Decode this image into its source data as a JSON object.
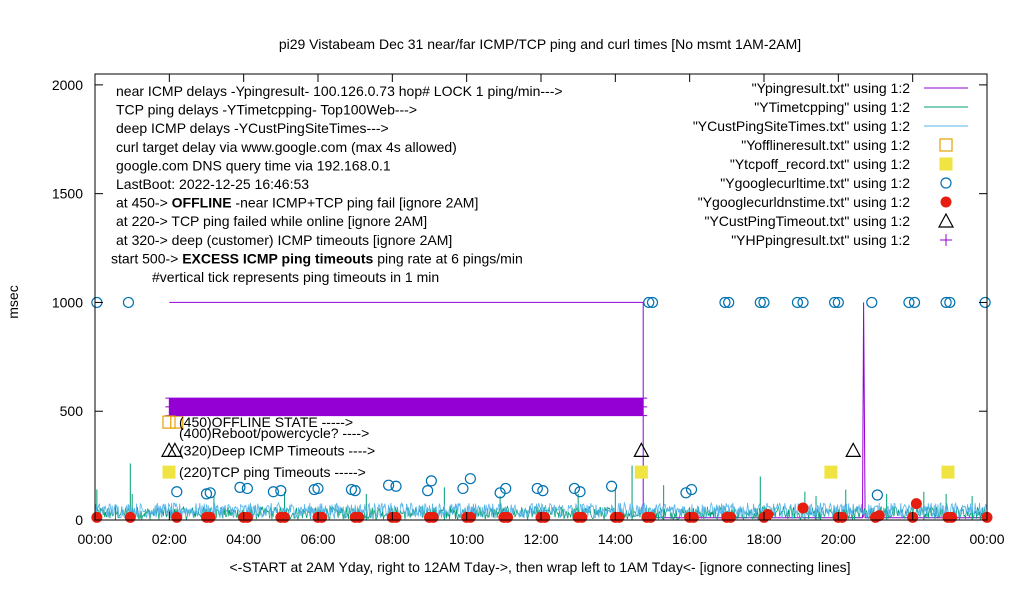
{
  "chart_data": {
    "type": "line",
    "title": "pi29 Vistabeam Dec 31  near/far ICMP/TCP ping and curl times [No msmt 1AM-2AM]",
    "xlabel": "<-START at 2AM Yday, right to 12AM Tday->, then wrap left to 1AM Tday<- [ignore connecting lines]",
    "ylabel": "msec",
    "xlim": [
      0,
      24
    ],
    "ylim": [
      0,
      2050
    ],
    "x_ticks": [
      {
        "value": 0,
        "label": "00:00"
      },
      {
        "value": 2,
        "label": "02:00"
      },
      {
        "value": 4,
        "label": "04:00"
      },
      {
        "value": 6,
        "label": "06:00"
      },
      {
        "value": 8,
        "label": "08:00"
      },
      {
        "value": 10,
        "label": "10:00"
      },
      {
        "value": 12,
        "label": "12:00"
      },
      {
        "value": 14,
        "label": "14:00"
      },
      {
        "value": 16,
        "label": "16:00"
      },
      {
        "value": 18,
        "label": "18:00"
      },
      {
        "value": 20,
        "label": "20:00"
      },
      {
        "value": 22,
        "label": "22:00"
      },
      {
        "value": 24,
        "label": "00:00"
      }
    ],
    "y_ticks": [
      {
        "value": 0,
        "label": "0"
      },
      {
        "value": 500,
        "label": "500"
      },
      {
        "value": 1000,
        "label": "1000"
      },
      {
        "value": 1500,
        "label": "1500"
      },
      {
        "value": 2000,
        "label": "2000"
      }
    ],
    "legend_placement": "top-right",
    "notes": [
      {
        "text": "near ICMP delays -Ypingresult- 100.126.0.73 hop# LOCK 1 ping/min--->",
        "bold": "",
        "after": ""
      },
      {
        "text": "TCP ping delays -YTimetcpping- Top100Web--->",
        "bold": "",
        "after": ""
      },
      {
        "text": "deep ICMP delays -YCustPingSiteTimes--->",
        "bold": "",
        "after": ""
      },
      {
        "text": "curl target delay via www.google.com (max 4s allowed)",
        "bold": "",
        "after": ""
      },
      {
        "text": "google.com DNS query time via 192.168.0.1",
        "bold": "",
        "after": ""
      },
      {
        "text": "LastBoot: 2022-12-25 16:46:53",
        "bold": "",
        "after": ""
      },
      {
        "text": "at 450-> ",
        "bold": "OFFLINE",
        "after": " -near ICMP+TCP ping fail [ignore 2AM]"
      },
      {
        "text": "at 220-> TCP ping failed while online [ignore 2AM]",
        "bold": "",
        "after": ""
      },
      {
        "text": "at 320-> deep (customer) ICMP timeouts [ignore 2AM]",
        "bold": "",
        "after": ""
      },
      {
        "text": "start 500-> ",
        "bold": "EXCESS ICMP ping timeouts",
        "after": "  ping rate at 6 pings/min"
      },
      {
        "text": "#vertical tick represents ping timeouts in 1 min",
        "bold": "",
        "after": ""
      }
    ],
    "inline_labels": [
      {
        "text": "(450)OFFLINE STATE ----->",
        "y": 450,
        "marker": "Yofflineresult.txt"
      },
      {
        "text": "(400)Reboot/powercycle? ---->",
        "y": 400,
        "marker": ""
      },
      {
        "text": "(320)Deep ICMP Timeouts ---->",
        "y": 320,
        "marker": "YCustPingTimeout.txt"
      },
      {
        "text": "(220)TCP ping Timeouts ----->",
        "y": 220,
        "marker": "Ytcpoff_record.txt"
      }
    ],
    "series": [
      {
        "name": "\"Ypingresult.txt\" using 1:2",
        "color": "#9400d3",
        "style": "line",
        "x": [
          2.0,
          14.75,
          14.75,
          14.8,
          20.65,
          20.68,
          20.72,
          24.0
        ],
        "y": [
          1000,
          1000,
          10,
          10,
          10,
          1000,
          10,
          10
        ]
      },
      {
        "name": "\"YTimetcpping\" using 1:2",
        "color": "#009e73",
        "style": "line",
        "base_level": 20,
        "noise": 60,
        "spikes": [
          {
            "x": 0.05,
            "y": 140
          },
          {
            "x": 0.55,
            "y": 70
          },
          {
            "x": 1.0,
            "y": 120
          },
          {
            "x": 0.95,
            "y": 260
          },
          {
            "x": 3.2,
            "y": 110
          },
          {
            "x": 5.1,
            "y": 130
          },
          {
            "x": 7.3,
            "y": 120
          },
          {
            "x": 9.4,
            "y": 150
          },
          {
            "x": 10.9,
            "y": 110
          },
          {
            "x": 13.0,
            "y": 120
          },
          {
            "x": 14.0,
            "y": 150
          },
          {
            "x": 14.45,
            "y": 250
          },
          {
            "x": 15.3,
            "y": 160
          },
          {
            "x": 17.9,
            "y": 200
          },
          {
            "x": 19.1,
            "y": 130
          },
          {
            "x": 19.4,
            "y": 110
          },
          {
            "x": 20.2,
            "y": 140
          },
          {
            "x": 21.3,
            "y": 120
          },
          {
            "x": 22.3,
            "y": 130
          },
          {
            "x": 22.9,
            "y": 120
          },
          {
            "x": 23.6,
            "y": 110
          }
        ]
      },
      {
        "name": "\"YCustPingSiteTimes.txt\" using 1:2",
        "color": "#56b4e9",
        "style": "line",
        "base_level": 30,
        "noise": 70
      },
      {
        "name": "\"Yofflineresult.txt\" using 1:2",
        "color": "#e69f00",
        "style": "open-square",
        "points": [
          [
            2.2,
            450
          ]
        ]
      },
      {
        "name": "\"Ytcpoff_record.txt\" using 1:2",
        "color": "#f0e442",
        "style": "filled-square",
        "points": [
          [
            14.7,
            220
          ],
          [
            19.8,
            220
          ],
          [
            22.95,
            220
          ]
        ]
      },
      {
        "name": "\"Ygooglecurltime.txt\" using 1:2",
        "color": "#0072b2",
        "style": "open-circle",
        "points": [
          [
            0.05,
            1000
          ],
          [
            0.9,
            1000
          ],
          [
            2.2,
            130
          ],
          [
            3.0,
            120
          ],
          [
            3.1,
            125
          ],
          [
            3.9,
            150
          ],
          [
            4.1,
            145
          ],
          [
            4.8,
            130
          ],
          [
            5.0,
            135
          ],
          [
            5.9,
            140
          ],
          [
            6.0,
            145
          ],
          [
            6.9,
            140
          ],
          [
            7.0,
            135
          ],
          [
            7.9,
            160
          ],
          [
            8.1,
            155
          ],
          [
            8.95,
            135
          ],
          [
            9.05,
            180
          ],
          [
            9.9,
            145
          ],
          [
            10.1,
            190
          ],
          [
            10.9,
            125
          ],
          [
            11.05,
            145
          ],
          [
            11.9,
            145
          ],
          [
            12.05,
            135
          ],
          [
            12.9,
            145
          ],
          [
            13.05,
            130
          ],
          [
            13.9,
            155
          ],
          [
            14.9,
            1000
          ],
          [
            15.0,
            1000
          ],
          [
            15.9,
            125
          ],
          [
            16.05,
            140
          ],
          [
            16.95,
            1000
          ],
          [
            17.05,
            1000
          ],
          [
            17.9,
            1000
          ],
          [
            18.0,
            1000
          ],
          [
            18.9,
            1000
          ],
          [
            19.05,
            1000
          ],
          [
            19.9,
            1000
          ],
          [
            20.0,
            1000
          ],
          [
            20.9,
            1000
          ],
          [
            21.05,
            115
          ],
          [
            21.9,
            1000
          ],
          [
            22.05,
            1000
          ],
          [
            22.9,
            1000
          ],
          [
            23.0,
            1000
          ],
          [
            23.95,
            1000
          ]
        ]
      },
      {
        "name": "\"Ygooglecurldnstime.txt\" using 1:2",
        "color": "#e51e10",
        "style": "filled-circle",
        "points": [
          [
            0.05,
            12
          ],
          [
            0.95,
            12
          ],
          [
            2.2,
            12
          ],
          [
            3.0,
            12
          ],
          [
            3.1,
            12
          ],
          [
            4.0,
            12
          ],
          [
            4.1,
            12
          ],
          [
            5.0,
            12
          ],
          [
            5.1,
            12
          ],
          [
            6.0,
            12
          ],
          [
            6.1,
            12
          ],
          [
            7.0,
            12
          ],
          [
            7.1,
            12
          ],
          [
            8.0,
            12
          ],
          [
            8.1,
            12
          ],
          [
            9.0,
            12
          ],
          [
            9.1,
            12
          ],
          [
            10.0,
            12
          ],
          [
            10.1,
            12
          ],
          [
            11.0,
            12
          ],
          [
            11.1,
            12
          ],
          [
            12.0,
            12
          ],
          [
            12.1,
            12
          ],
          [
            13.0,
            12
          ],
          [
            13.1,
            12
          ],
          [
            14.0,
            12
          ],
          [
            14.1,
            12
          ],
          [
            14.85,
            12
          ],
          [
            14.95,
            12
          ],
          [
            16.0,
            12
          ],
          [
            16.1,
            12
          ],
          [
            17.0,
            12
          ],
          [
            17.1,
            12
          ],
          [
            18.0,
            12
          ],
          [
            18.1,
            25
          ],
          [
            19.05,
            55
          ],
          [
            20.0,
            12
          ],
          [
            20.1,
            12
          ],
          [
            21.0,
            12
          ],
          [
            21.1,
            20
          ],
          [
            22.0,
            12
          ],
          [
            22.1,
            75
          ],
          [
            22.95,
            12
          ],
          [
            23.05,
            12
          ],
          [
            24.0,
            12
          ]
        ]
      },
      {
        "name": "\"YCustPingTimeout.txt\" using 1:2",
        "color": "#000000",
        "style": "open-triangle",
        "points": [
          [
            2.15,
            320
          ],
          [
            14.7,
            320
          ],
          [
            20.4,
            320
          ]
        ]
      },
      {
        "name": "\"YHPpingresult.txt\" using 1:2",
        "color": "#9400d3",
        "style": "plus",
        "band": {
          "x_start": 2.0,
          "x_end": 14.75,
          "y_low": 480,
          "y_high": 560
        }
      }
    ]
  }
}
